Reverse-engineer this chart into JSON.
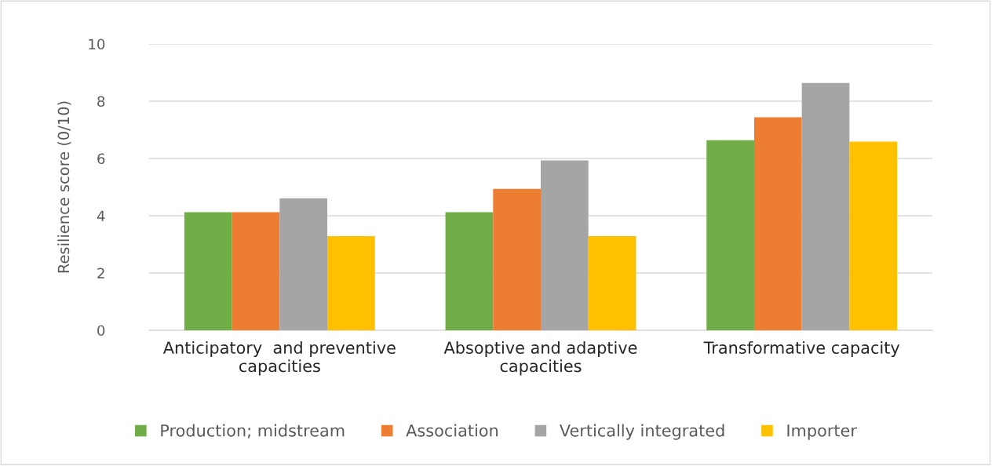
{
  "chart_data": {
    "type": "bar",
    "ylabel": "Resilience score (0/10)",
    "categories": [
      "Anticipatory  and preventive\ncapacities",
      "Absoptive and adaptive\ncapacities",
      "Transformative capacity"
    ],
    "series": [
      {
        "name": "Production; midstream",
        "color": "#70ad47",
        "values": [
          4.12,
          4.12,
          6.64
        ]
      },
      {
        "name": "Association",
        "color": "#ed7d31",
        "values": [
          4.12,
          4.94,
          7.44
        ]
      },
      {
        "name": "Vertically integrated",
        "color": "#a5a5a5",
        "values": [
          4.61,
          5.93,
          8.64
        ]
      },
      {
        "name": "Importer",
        "color": "#ffc000",
        "values": [
          3.29,
          3.29,
          6.59
        ]
      }
    ],
    "ylim": [
      0,
      10
    ],
    "yticks": [
      0,
      2,
      4,
      6,
      8,
      10
    ],
    "grid": "y",
    "legend": "bottom"
  }
}
